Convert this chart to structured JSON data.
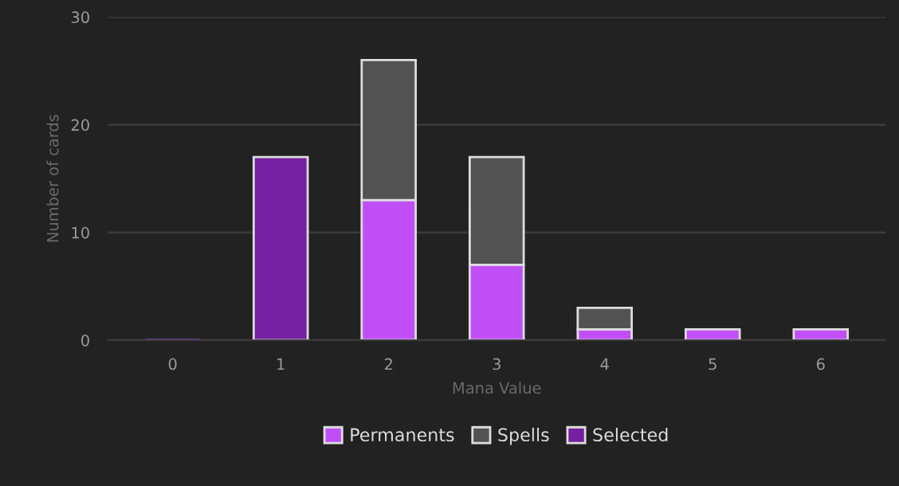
{
  "chart_data": {
    "type": "bar",
    "stacked": true,
    "xlabel": "Mana Value",
    "ylabel": "Number of cards",
    "categories": [
      "0",
      "1",
      "2",
      "3",
      "4",
      "5",
      "6"
    ],
    "series": [
      {
        "name": "Permanents",
        "color": "#c14ff7",
        "values": [
          0,
          null,
          13,
          7,
          1,
          1,
          1
        ]
      },
      {
        "name": "Spells",
        "color": "#525252",
        "values": [
          null,
          null,
          13,
          10,
          2,
          null,
          null
        ]
      },
      {
        "name": "Selected",
        "color": "#7420a0",
        "values": [
          null,
          17,
          null,
          null,
          null,
          null,
          null
        ]
      }
    ],
    "ylim": [
      0,
      30
    ],
    "yticks": [
      0,
      10,
      20,
      30
    ],
    "grid": "y",
    "legend": "bottom"
  }
}
